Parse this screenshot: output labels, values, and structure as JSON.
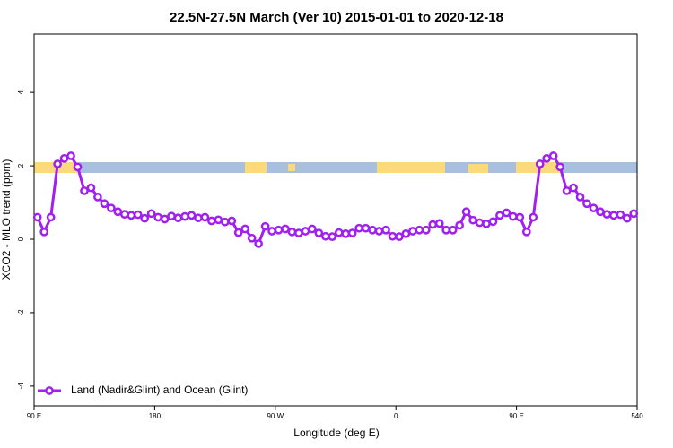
{
  "chart_data": {
    "type": "line",
    "title": "22.5N-27.5N March (Ver 10)   2015-01-01 to 2020-12-18",
    "x_label": "Longitude (deg E)",
    "y_label": "XCO2 - MLO trend (ppm)",
    "x": [
      92.5,
      97.5,
      102.5,
      107.5,
      112.5,
      117.5,
      122.5,
      127.5,
      132.5,
      137.5,
      142.5,
      147.5,
      152.5,
      157.5,
      162.5,
      167.5,
      172.5,
      177.5,
      182.5,
      187.5,
      192.5,
      197.5,
      202.5,
      207.5,
      212.5,
      217.5,
      222.5,
      227.5,
      232.5,
      237.5,
      242.5,
      247.5,
      252.5,
      257.5,
      262.5,
      267.5,
      272.5,
      277.5,
      282.5,
      287.5,
      292.5,
      297.5,
      302.5,
      307.5,
      312.5,
      317.5,
      322.5,
      327.5,
      332.5,
      337.5,
      342.5,
      347.5,
      352.5,
      357.5,
      362.5,
      367.5,
      372.5,
      377.5,
      382.5,
      387.5,
      392.5,
      397.5,
      402.5,
      407.5,
      412.5,
      417.5,
      422.5,
      427.5,
      432.5,
      437.5,
      442.5,
      447.5,
      452.5,
      457.5,
      462.5,
      467.5,
      472.5,
      477.5,
      482.5,
      487.5,
      492.5,
      497.5,
      502.5,
      507.5,
      512.5,
      517.5,
      522.5,
      527.5,
      532.5,
      537.5
    ],
    "series": [
      {
        "name": "Land (Nadir&Glint) and Ocean (Glint)",
        "color": "#a020f0",
        "values": [
          0.6,
          0.2,
          0.6,
          2.05,
          2.2,
          2.27,
          1.97,
          1.32,
          1.4,
          1.15,
          0.97,
          0.85,
          0.75,
          0.68,
          0.65,
          0.67,
          0.57,
          0.7,
          0.6,
          0.55,
          0.63,
          0.58,
          0.62,
          0.65,
          0.58,
          0.6,
          0.5,
          0.53,
          0.47,
          0.5,
          0.18,
          0.28,
          0.03,
          -0.12,
          0.35,
          0.22,
          0.25,
          0.28,
          0.2,
          0.17,
          0.22,
          0.28,
          0.17,
          0.08,
          0.07,
          0.18,
          0.15,
          0.17,
          0.3,
          0.3,
          0.25,
          0.22,
          0.25,
          0.08,
          0.07,
          0.15,
          0.22,
          0.25,
          0.25,
          0.4,
          0.43,
          0.25,
          0.25,
          0.38,
          0.75,
          0.52,
          0.45,
          0.42,
          0.48,
          0.65,
          0.72,
          0.62,
          0.6,
          0.2,
          0.6,
          2.05,
          2.2,
          2.27,
          1.97,
          1.32,
          1.4,
          1.15,
          0.97,
          0.85,
          0.75,
          0.68,
          0.65,
          0.67,
          0.57,
          0.7
        ]
      }
    ],
    "xlim": [
      90,
      540
    ],
    "xticks": [
      {
        "value": 90,
        "label": "90 E"
      },
      180,
      {
        "value": 270,
        "label": "90 W"
      },
      {
        "value": 360,
        "label": "0"
      },
      {
        "value": 450,
        "label": "90 E"
      },
      540
    ],
    "ylim": [
      -4.54,
      5.59
    ],
    "yticks": [
      -4,
      -2,
      0,
      2,
      4
    ],
    "legend": "bottom-left"
  }
}
